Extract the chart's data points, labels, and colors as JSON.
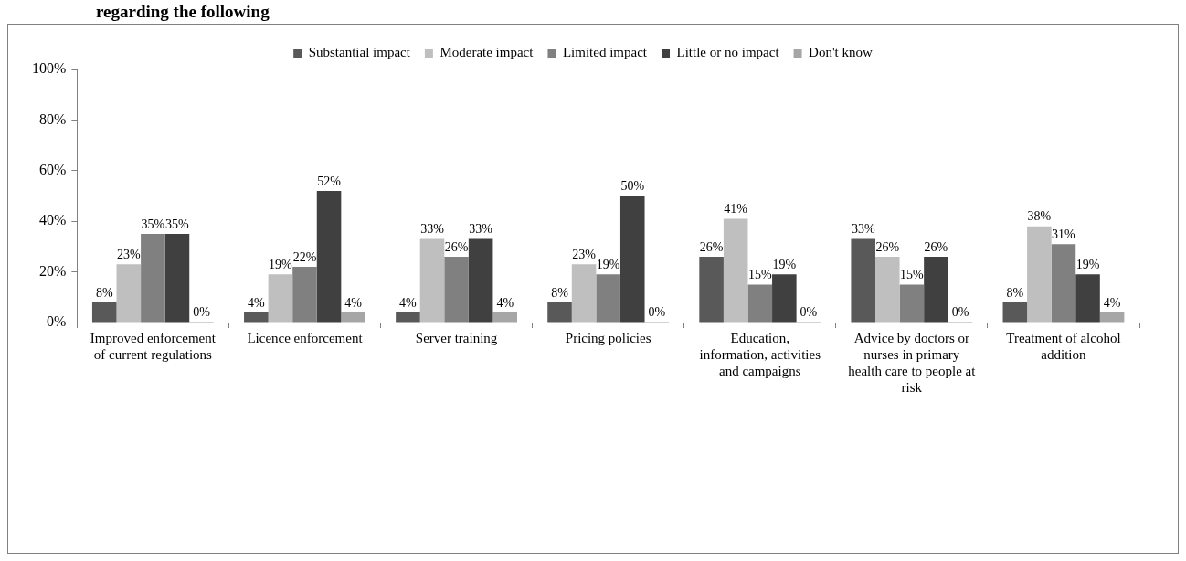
{
  "chart_data": {
    "type": "bar",
    "title": "regarding the following",
    "categories": [
      "Improved enforcement of current regulations",
      "Licence enforcement",
      "Server training",
      "Pricing policies",
      "Education, information, activities and campaigns",
      "Advice by doctors or nurses in primary health care to people at risk",
      "Treatment of alcohol addition"
    ],
    "series": [
      {
        "name": "Substantial impact",
        "color": "#595959",
        "values": [
          8,
          4,
          4,
          8,
          26,
          33,
          8
        ],
        "value_labels": [
          "8%",
          "4%",
          "4%",
          "8%",
          "26%",
          "33%",
          "8%"
        ]
      },
      {
        "name": "Moderate impact",
        "color": "#bfbfbf",
        "values": [
          23,
          19,
          33,
          23,
          41,
          26,
          38
        ],
        "value_labels": [
          "23%",
          "19%",
          "33%",
          "23%",
          "41%",
          "26%",
          "38%"
        ]
      },
      {
        "name": "Limited impact",
        "color": "#808080",
        "values": [
          35,
          22,
          26,
          19,
          15,
          15,
          31
        ],
        "value_labels": [
          "35%",
          "22%",
          "26%",
          "19%",
          "15%",
          "15%",
          "31%"
        ]
      },
      {
        "name": "Little or no impact",
        "color": "#404040",
        "values": [
          35,
          52,
          33,
          50,
          19,
          26,
          19
        ],
        "value_labels": [
          "35%",
          "52%",
          "33%",
          "50%",
          "19%",
          "26%",
          "19%"
        ]
      },
      {
        "name": "Don't know",
        "color": "#a6a6a6",
        "values": [
          0,
          4,
          4,
          0,
          0,
          0,
          4
        ],
        "value_labels": [
          "0%",
          "4%",
          "4%",
          "0%",
          "0%",
          "0%",
          "4%"
        ]
      }
    ],
    "ylim": [
      0,
      100
    ],
    "yticks": [
      {
        "value": 0,
        "label": "0%"
      },
      {
        "value": 20,
        "label": "20%"
      },
      {
        "value": 40,
        "label": "40%"
      },
      {
        "value": 60,
        "label": "60%"
      },
      {
        "value": 80,
        "label": "80%"
      },
      {
        "value": 100,
        "label": "100%"
      }
    ],
    "grid": false,
    "legend": "top"
  }
}
